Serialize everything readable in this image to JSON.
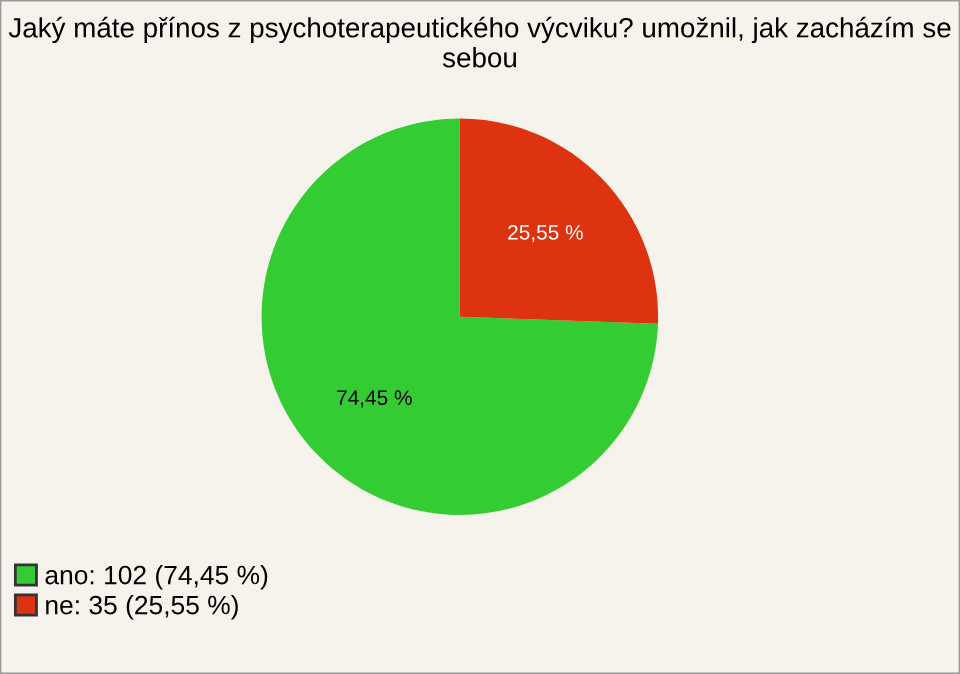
{
  "chart_data": {
    "type": "pie",
    "title": "Jaký máte přínos z psychoterapeutického výcviku? umožnil, jak zacházím se sebou",
    "categories": [
      "ano: 102 (74,45 %)",
      "ne: 35 (25,55 %)"
    ],
    "values": [
      74.45,
      25.55
    ],
    "value_labels": [
      "74,45 %",
      "25,55 %"
    ],
    "colors": [
      "#33cc33",
      "#dd3311"
    ],
    "legend": "bottom left"
  }
}
